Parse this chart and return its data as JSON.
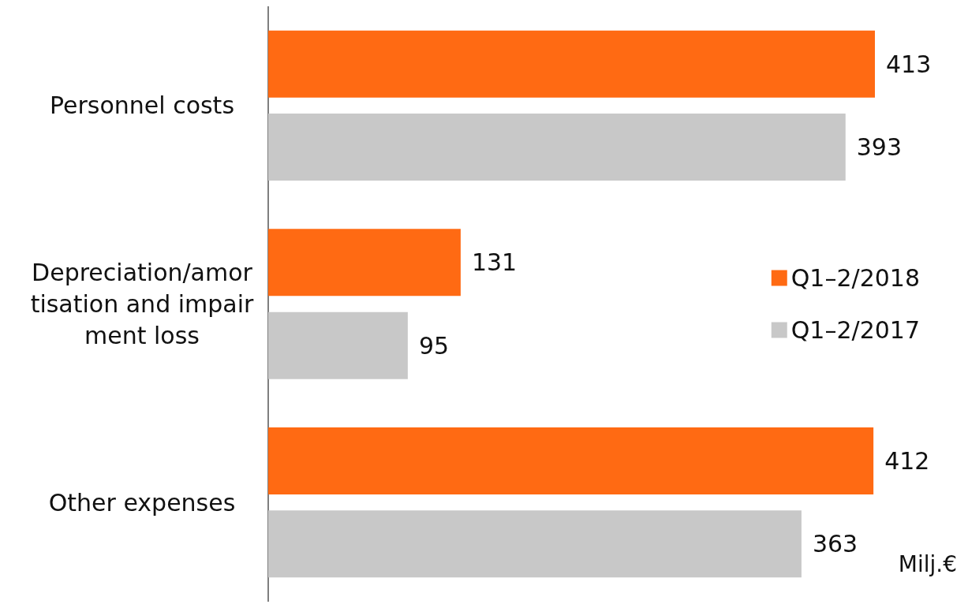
{
  "chart_data": {
    "type": "bar",
    "orientation": "horizontal",
    "categories": [
      "Personnel costs",
      "Depreciation/amortisation and impairment loss",
      "Other expenses"
    ],
    "series": [
      {
        "name": "Q1–2/2018",
        "color": "#ff6a13",
        "values": [
          413,
          131,
          412
        ]
      },
      {
        "name": "Q1–2/2017",
        "color": "#c8c8c8",
        "values": [
          393,
          95,
          363
        ]
      }
    ],
    "data_labels": true,
    "legend": "right",
    "grid": false,
    "annotations": [
      "Milj.€"
    ]
  }
}
